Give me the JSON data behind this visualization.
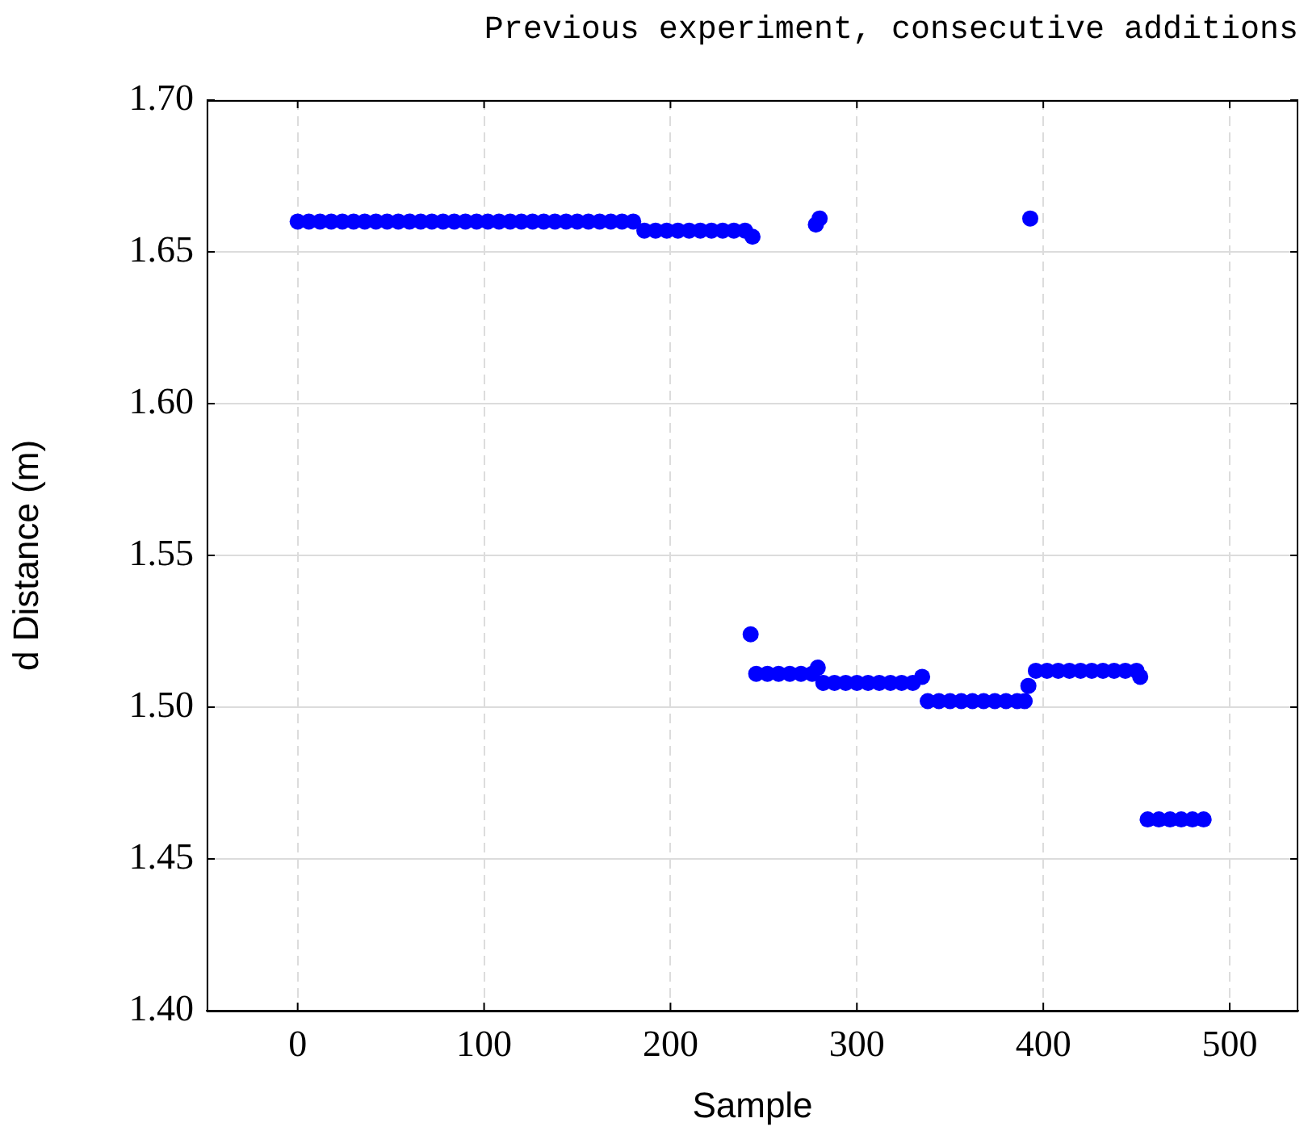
{
  "chart_data": {
    "type": "scatter",
    "title": "Previous experiment, consecutive additions",
    "xlabel": "Sample",
    "ylabel": "d Distance (m)",
    "xlim": [
      -48.8,
      536.8
    ],
    "xticks": [
      0,
      100,
      200,
      300,
      400,
      500
    ],
    "ylim": [
      1.4,
      1.7
    ],
    "yticks": [
      {
        "value": 1.4,
        "label": "1.40"
      },
      {
        "value": 1.45,
        "label": "1.45"
      },
      {
        "value": 1.5,
        "label": "1.50"
      },
      {
        "value": 1.55,
        "label": "1.55"
      },
      {
        "value": 1.6,
        "label": "1.60"
      },
      {
        "value": 1.65,
        "label": "1.65"
      },
      {
        "value": 1.7,
        "label": "1.70"
      }
    ],
    "grid": true,
    "marker": "circle",
    "series": [
      {
        "color": "#0000ff",
        "x": [
          0,
          6,
          12,
          18,
          24,
          30,
          36,
          42,
          48,
          54,
          60,
          66,
          72,
          78,
          84,
          90,
          96,
          102,
          108,
          114,
          120,
          126,
          132,
          138,
          144,
          150,
          156,
          162,
          168,
          174,
          180,
          186,
          192,
          198,
          204,
          210,
          216,
          222,
          228,
          234,
          240,
          244,
          243,
          246,
          252,
          258,
          264,
          270,
          276,
          279,
          278,
          280,
          282,
          288,
          294,
          300,
          306,
          312,
          318,
          324,
          330,
          335,
          338,
          344,
          350,
          356,
          362,
          368,
          374,
          380,
          386,
          390,
          392,
          393,
          396,
          402,
          408,
          414,
          420,
          426,
          432,
          438,
          444,
          450,
          452,
          456,
          462,
          468,
          474,
          480,
          486
        ],
        "values": [
          1.66,
          1.66,
          1.66,
          1.66,
          1.66,
          1.66,
          1.66,
          1.66,
          1.66,
          1.66,
          1.66,
          1.66,
          1.66,
          1.66,
          1.66,
          1.66,
          1.66,
          1.66,
          1.66,
          1.66,
          1.66,
          1.66,
          1.66,
          1.66,
          1.66,
          1.66,
          1.66,
          1.66,
          1.66,
          1.66,
          1.66,
          1.657,
          1.657,
          1.657,
          1.657,
          1.657,
          1.657,
          1.657,
          1.657,
          1.657,
          1.657,
          1.655,
          1.524,
          1.511,
          1.511,
          1.511,
          1.511,
          1.511,
          1.511,
          1.513,
          1.659,
          1.661,
          1.508,
          1.508,
          1.508,
          1.508,
          1.508,
          1.508,
          1.508,
          1.508,
          1.508,
          1.51,
          1.502,
          1.502,
          1.502,
          1.502,
          1.502,
          1.502,
          1.502,
          1.502,
          1.502,
          1.502,
          1.507,
          1.661,
          1.512,
          1.512,
          1.512,
          1.512,
          1.512,
          1.512,
          1.512,
          1.512,
          1.512,
          1.512,
          1.51,
          1.463,
          1.463,
          1.463,
          1.463,
          1.463,
          1.463
        ]
      }
    ]
  }
}
